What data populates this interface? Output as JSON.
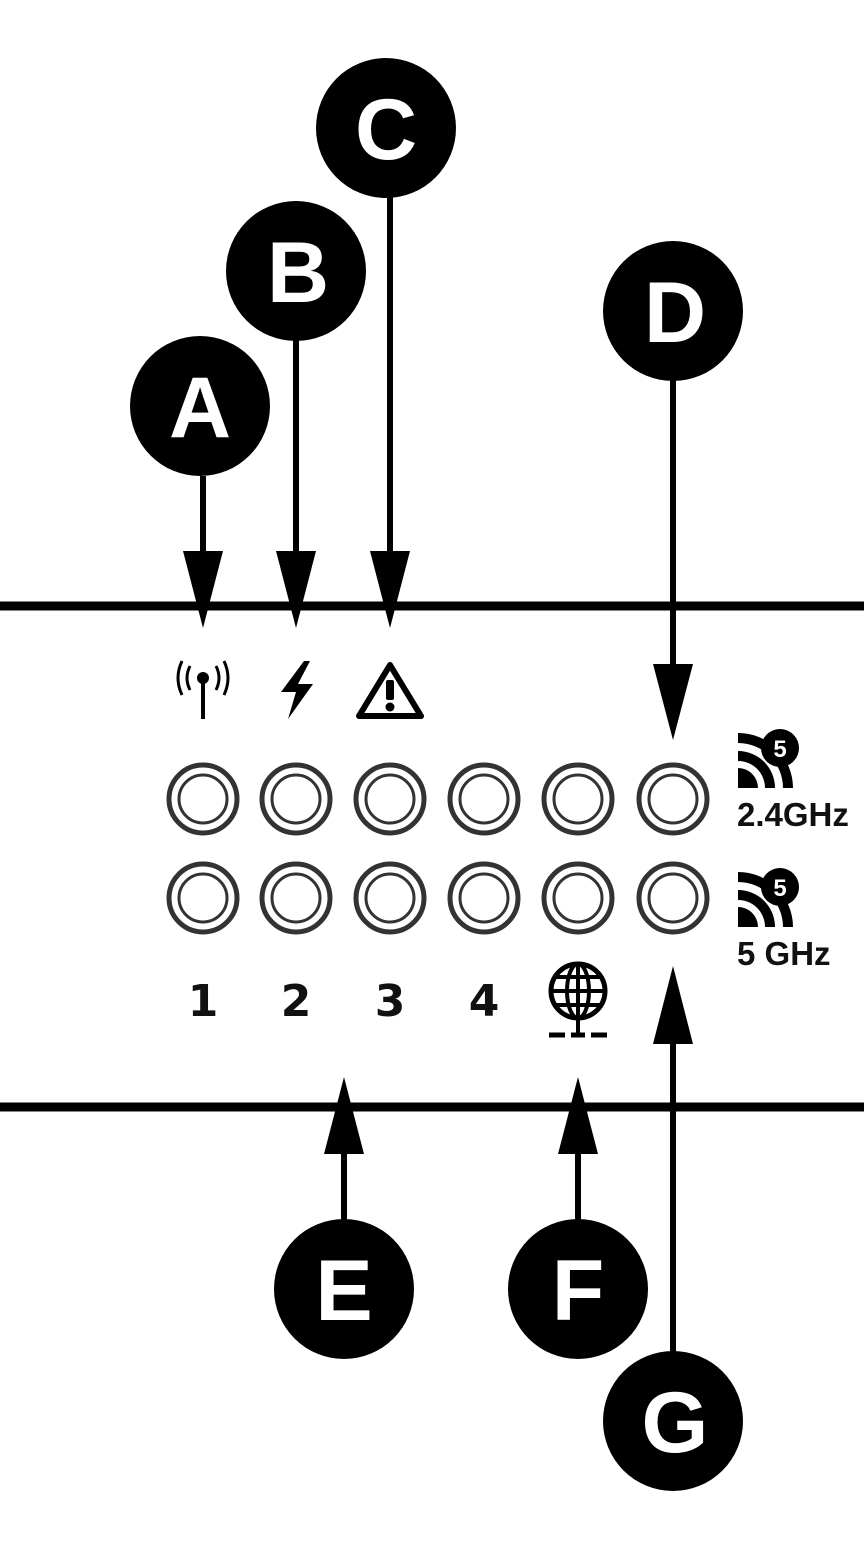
{
  "callouts": {
    "a": "A",
    "b": "B",
    "c": "C",
    "d": "D",
    "e": "E",
    "f": "F",
    "g": "G"
  },
  "status_icons": [
    "antenna-icon",
    "lightning-icon",
    "warning-triangle-icon"
  ],
  "led_rows": [
    {
      "band": "2.4GHz",
      "badge": "5",
      "icon": "wifi-icon"
    },
    {
      "band": "5 GHz",
      "badge": "5",
      "icon": "wifi-icon"
    }
  ],
  "ports": [
    "1",
    "2",
    "3",
    "4"
  ],
  "wan_icon": "globe-network-icon",
  "colors": {
    "ink": "#000000",
    "led_ring": "#333333",
    "background": "#ffffff"
  }
}
